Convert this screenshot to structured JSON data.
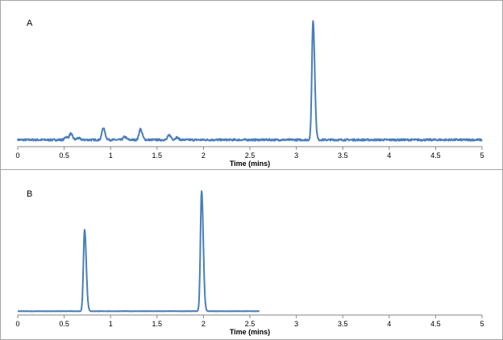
{
  "chart_data": [
    {
      "type": "line",
      "panel_label": "A",
      "xlabel": "Time (mins)",
      "ylabel": "",
      "xlim": [
        0,
        5
      ],
      "xticks": [
        "0",
        "0.5",
        "1",
        "1.5",
        "2",
        "2.5",
        "3",
        "3.5",
        "4",
        "4.5",
        "5"
      ],
      "y_axis_shown": false,
      "grid": false,
      "color": "#4a7ebb",
      "trace_range": [
        0,
        5
      ],
      "baseline": 3,
      "noise": 0.8,
      "peaks": [
        {
          "time": 0.52,
          "height": 2.5
        },
        {
          "time": 0.57,
          "height": 5
        },
        {
          "time": 0.65,
          "height": 1.5
        },
        {
          "time": 0.92,
          "height": 10
        },
        {
          "time": 1.15,
          "height": 2.5
        },
        {
          "time": 1.32,
          "height": 9
        },
        {
          "time": 1.63,
          "height": 4
        },
        {
          "time": 1.71,
          "height": 2
        },
        {
          "time": 3.18,
          "height": 100
        }
      ]
    },
    {
      "type": "line",
      "panel_label": "B",
      "xlabel": "Time (mins)",
      "ylabel": "",
      "xlim": [
        0,
        5
      ],
      "xticks": [
        "0",
        "0.5",
        "1",
        "1.5",
        "2",
        "2.5",
        "3",
        "3.5",
        "4",
        "4.5",
        "5"
      ],
      "y_axis_shown": false,
      "grid": false,
      "color": "#4a7ebb",
      "trace_range": [
        0,
        2.6
      ],
      "baseline": 0.5,
      "noise": 0.15,
      "peaks": [
        {
          "time": 0.72,
          "height": 68
        },
        {
          "time": 1.98,
          "height": 100
        }
      ]
    }
  ]
}
